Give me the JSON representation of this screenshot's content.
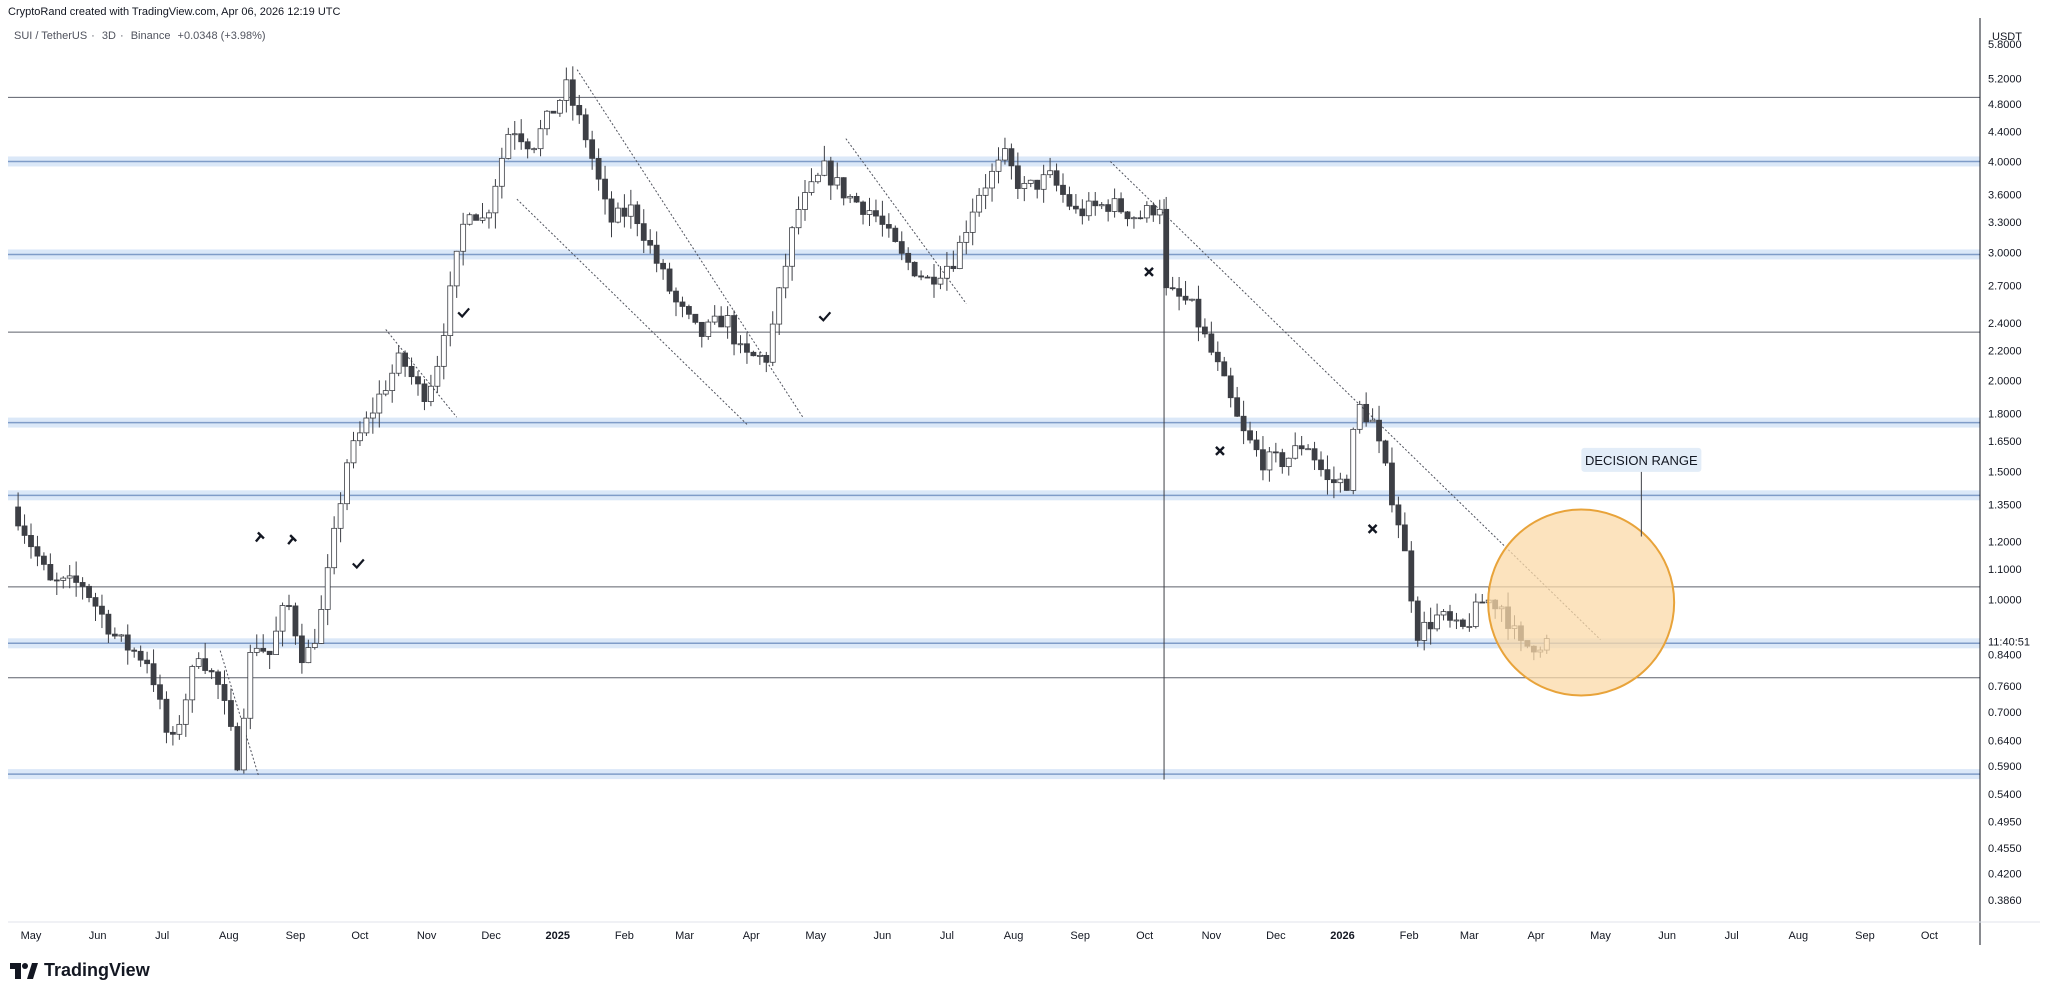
{
  "header": {
    "credit": "CryptoRand created with TradingView.com, Apr 06, 2026 12:19 UTC",
    "symbol": "SUI / TetherUS",
    "interval": "3D",
    "exchange": "Binance",
    "change": "+0.0348 (+3.98%)"
  },
  "footer": {
    "brand": "TradingView"
  },
  "colors": {
    "up_body": "#ffffff",
    "down_body": "#3d3f45",
    "wick": "#3d3f45",
    "zone": "#cfe0f5",
    "zone_line": "#7f9cc8",
    "hline": "#5d606b",
    "circle_fill": "#fbd9a8",
    "circle_stroke": "#e8a33a",
    "label_bg": "#e3edf8"
  },
  "chart_data": {
    "type": "candlestick",
    "currency": "USDT",
    "y_scale": "log",
    "ylim": [
      0.36,
      6.3
    ],
    "price_ticks": [
      "5.8000",
      "5.2000",
      "4.8000",
      "4.4000",
      "4.0000",
      "3.6000",
      "3.3000",
      "3.0000",
      "2.7000",
      "2.4000",
      "2.2000",
      "2.0000",
      "1.8000",
      "1.6500",
      "1.5000",
      "1.3500",
      "1.2000",
      "1.1000",
      "1.0000",
      "0.8400",
      "0.7600",
      "0.7000",
      "0.6400",
      "0.5900",
      "0.5400",
      "0.4950",
      "0.4550",
      "0.4200",
      "0.3860"
    ],
    "countdown_label": "11:40:51",
    "time_ticks": [
      {
        "label": "May",
        "date": "2024-05-01"
      },
      {
        "label": "Jun",
        "date": "2024-06-01"
      },
      {
        "label": "Jul",
        "date": "2024-07-01"
      },
      {
        "label": "Aug",
        "date": "2024-08-01"
      },
      {
        "label": "Sep",
        "date": "2024-09-01"
      },
      {
        "label": "Oct",
        "date": "2024-10-01"
      },
      {
        "label": "Nov",
        "date": "2024-11-01"
      },
      {
        "label": "Dec",
        "date": "2024-12-01"
      },
      {
        "label": "2025",
        "date": "2025-01-01",
        "bold": true
      },
      {
        "label": "Feb",
        "date": "2025-02-01"
      },
      {
        "label": "Mar",
        "date": "2025-03-01"
      },
      {
        "label": "Apr",
        "date": "2025-04-01"
      },
      {
        "label": "May",
        "date": "2025-05-01"
      },
      {
        "label": "Jun",
        "date": "2025-06-01"
      },
      {
        "label": "Jul",
        "date": "2025-07-01"
      },
      {
        "label": "Aug",
        "date": "2025-08-01"
      },
      {
        "label": "Sep",
        "date": "2025-09-01"
      },
      {
        "label": "Oct",
        "date": "2025-10-01"
      },
      {
        "label": "Nov",
        "date": "2025-11-01"
      },
      {
        "label": "Dec",
        "date": "2025-12-01"
      },
      {
        "label": "2026",
        "date": "2026-01-01",
        "bold": true
      },
      {
        "label": "Feb",
        "date": "2026-02-01"
      },
      {
        "label": "Mar",
        "date": "2026-03-01"
      },
      {
        "label": "Apr",
        "date": "2026-04-01"
      },
      {
        "label": "May",
        "date": "2026-05-01"
      },
      {
        "label": "Jun",
        "date": "2026-06-01"
      },
      {
        "label": "Jul",
        "date": "2026-07-01"
      },
      {
        "label": "Aug",
        "date": "2026-08-01"
      },
      {
        "label": "Sep",
        "date": "2026-09-01"
      },
      {
        "label": "Oct",
        "date": "2026-10-01"
      }
    ],
    "candle_interval_days": 3,
    "first_candle_date": "2024-04-25",
    "close_path": [
      {
        "date": "2024-04-25",
        "price": 1.3
      },
      {
        "date": "2024-05-10",
        "price": 1.05
      },
      {
        "date": "2024-05-25",
        "price": 1.05
      },
      {
        "date": "2024-06-10",
        "price": 0.88
      },
      {
        "date": "2024-06-25",
        "price": 0.82
      },
      {
        "date": "2024-07-05",
        "price": 0.62
      },
      {
        "date": "2024-07-18",
        "price": 0.85
      },
      {
        "date": "2024-07-28",
        "price": 0.75
      },
      {
        "date": "2024-08-05",
        "price": 0.6
      },
      {
        "date": "2024-08-12",
        "price": 0.88
      },
      {
        "date": "2024-08-20",
        "price": 0.84
      },
      {
        "date": "2024-08-28",
        "price": 1.0
      },
      {
        "date": "2024-09-05",
        "price": 0.82
      },
      {
        "date": "2024-09-12",
        "price": 0.92
      },
      {
        "date": "2024-09-25",
        "price": 1.55
      },
      {
        "date": "2024-10-10",
        "price": 1.9
      },
      {
        "date": "2024-10-20",
        "price": 2.15
      },
      {
        "date": "2024-10-30",
        "price": 1.9
      },
      {
        "date": "2024-11-05",
        "price": 2.05
      },
      {
        "date": "2024-11-20",
        "price": 3.5
      },
      {
        "date": "2024-11-28",
        "price": 3.3
      },
      {
        "date": "2024-12-10",
        "price": 4.5
      },
      {
        "date": "2024-12-20",
        "price": 4.2
      },
      {
        "date": "2025-01-05",
        "price": 5.05
      },
      {
        "date": "2025-01-15",
        "price": 4.25
      },
      {
        "date": "2025-01-25",
        "price": 3.3
      },
      {
        "date": "2025-02-05",
        "price": 3.45
      },
      {
        "date": "2025-02-15",
        "price": 2.95
      },
      {
        "date": "2025-02-25",
        "price": 2.55
      },
      {
        "date": "2025-03-08",
        "price": 2.3
      },
      {
        "date": "2025-03-20",
        "price": 2.45
      },
      {
        "date": "2025-03-28",
        "price": 2.15
      },
      {
        "date": "2025-04-08",
        "price": 2.15
      },
      {
        "date": "2025-04-22",
        "price": 3.4
      },
      {
        "date": "2025-05-05",
        "price": 3.9
      },
      {
        "date": "2025-05-15",
        "price": 3.6
      },
      {
        "date": "2025-05-28",
        "price": 3.4
      },
      {
        "date": "2025-06-10",
        "price": 2.95
      },
      {
        "date": "2025-06-22",
        "price": 2.75
      },
      {
        "date": "2025-07-05",
        "price": 2.95
      },
      {
        "date": "2025-07-15",
        "price": 3.6
      },
      {
        "date": "2025-07-28",
        "price": 4.05
      },
      {
        "date": "2025-08-05",
        "price": 3.65
      },
      {
        "date": "2025-08-18",
        "price": 3.8
      },
      {
        "date": "2025-08-30",
        "price": 3.4
      },
      {
        "date": "2025-09-15",
        "price": 3.5
      },
      {
        "date": "2025-09-28",
        "price": 3.35
      },
      {
        "date": "2025-10-08",
        "price": 3.5
      },
      {
        "date": "2025-10-10",
        "price": 2.65
      },
      {
        "date": "2025-10-22",
        "price": 2.55
      },
      {
        "date": "2025-11-05",
        "price": 2.05
      },
      {
        "date": "2025-11-15",
        "price": 1.7
      },
      {
        "date": "2025-11-25",
        "price": 1.55
      },
      {
        "date": "2025-12-05",
        "price": 1.55
      },
      {
        "date": "2025-12-15",
        "price": 1.65
      },
      {
        "date": "2025-12-25",
        "price": 1.45
      },
      {
        "date": "2026-01-03",
        "price": 1.45
      },
      {
        "date": "2026-01-08",
        "price": 1.85
      },
      {
        "date": "2026-01-15",
        "price": 1.75
      },
      {
        "date": "2026-01-28",
        "price": 1.25
      },
      {
        "date": "2026-02-05",
        "price": 0.9
      },
      {
        "date": "2026-02-15",
        "price": 0.95
      },
      {
        "date": "2026-02-25",
        "price": 0.9
      },
      {
        "date": "2026-03-08",
        "price": 1.0
      },
      {
        "date": "2026-03-16",
        "price": 0.98
      },
      {
        "date": "2026-03-25",
        "price": 0.86
      },
      {
        "date": "2026-04-06",
        "price": 0.875
      }
    ],
    "support_zones": [
      4.0,
      2.98,
      1.75,
      1.39,
      0.87,
      0.575
    ],
    "horizontal_lines": [
      4.9,
      2.33,
      1.04,
      0.78
    ],
    "vertical_line": {
      "date": "2025-10-10",
      "from": 3.55,
      "to": 0.565
    },
    "trendlines": [
      {
        "from": {
          "date": "2024-07-28",
          "price": 0.85
        },
        "to": {
          "date": "2024-08-15",
          "price": 0.57
        }
      },
      {
        "from": {
          "date": "2024-10-13",
          "price": 2.35
        },
        "to": {
          "date": "2024-11-15",
          "price": 1.78
        }
      },
      {
        "from": {
          "date": "2025-01-10",
          "price": 5.35
        },
        "to": {
          "date": "2025-04-25",
          "price": 1.78
        }
      },
      {
        "from": {
          "date": "2024-12-13",
          "price": 3.55
        },
        "to": {
          "date": "2025-03-30",
          "price": 1.74
        }
      },
      {
        "from": {
          "date": "2025-05-15",
          "price": 4.3
        },
        "to": {
          "date": "2025-07-10",
          "price": 2.55
        }
      },
      {
        "from": {
          "date": "2025-09-15",
          "price": 4.0
        },
        "to": {
          "date": "2026-05-01",
          "price": 0.88
        }
      }
    ],
    "markers": [
      {
        "kind": "hammer",
        "date": "2024-08-15",
        "price": 1.22
      },
      {
        "kind": "hammer",
        "date": "2024-08-30",
        "price": 1.21
      },
      {
        "kind": "check",
        "date": "2024-09-30",
        "price": 1.12
      },
      {
        "kind": "check",
        "date": "2024-11-18",
        "price": 2.48
      },
      {
        "kind": "check",
        "date": "2025-05-05",
        "price": 2.45
      },
      {
        "kind": "cross",
        "date": "2025-10-03",
        "price": 2.82
      },
      {
        "kind": "cross",
        "date": "2025-11-05",
        "price": 1.6
      },
      {
        "kind": "cross",
        "date": "2026-01-15",
        "price": 1.25
      }
    ],
    "decision_zone": {
      "label": "DECISION RANGE",
      "circle_center": {
        "date": "2026-04-22",
        "price": 0.99
      },
      "label_anchor": {
        "date": "2026-05-20",
        "price": 1.55
      },
      "arrow_tip": {
        "date": "2026-05-20",
        "price": 1.22
      }
    }
  }
}
